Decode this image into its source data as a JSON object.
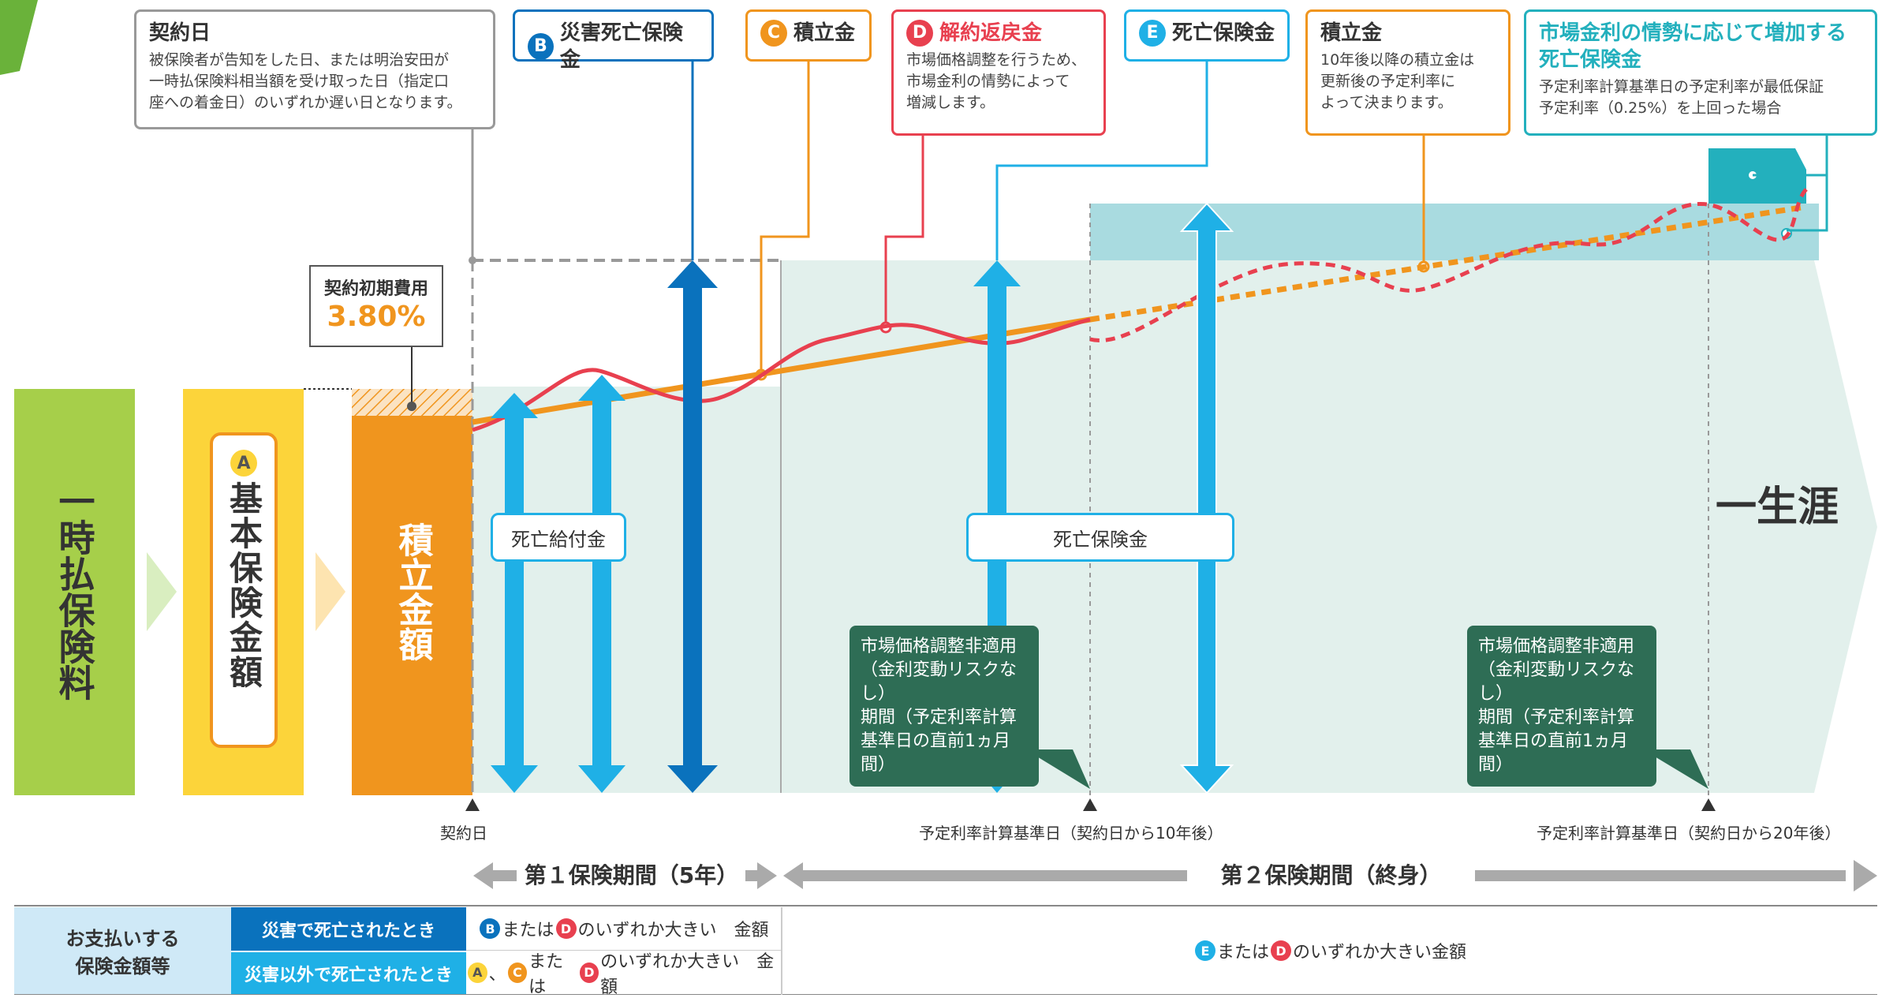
{
  "colors": {
    "green": "#a6cf4a",
    "yellow": "#fcd43a",
    "orange": "#f0951e",
    "sky": "#1fb0e6",
    "navy": "#0a72bd",
    "red": "#e8404f",
    "mint": "#e2f0ec",
    "teal": "#a9dbe0",
    "darkteal": "#23b0bd",
    "forest": "#2e6d55",
    "gray": "#888888"
  },
  "callouts": {
    "contract_day": {
      "title": "契約日",
      "lines": [
        "被保険者が告知をした日、または明治安田が",
        "一時払保険料相当額を受け取った日（指定口",
        "座への着金日）のいずれか遅い日となります。"
      ]
    },
    "b": {
      "badge": "B",
      "title": "災害死亡保険金"
    },
    "c": {
      "badge": "C",
      "title": "積立金"
    },
    "d": {
      "badge": "D",
      "title": "解約返戻金",
      "lines": [
        "市場価格調整を行うため、",
        "市場金利の情勢によって",
        "増減します。"
      ]
    },
    "e": {
      "badge": "E",
      "title": "死亡保険金"
    },
    "reserve": {
      "title": "積立金",
      "lines": [
        "10年後以降の積立金は",
        "更新後の予定利率に",
        "よって決まります。"
      ]
    },
    "market": {
      "title_lines": [
        "市場金利の情勢に応じて増加する",
        "死亡保険金"
      ],
      "lines": [
        "予定利率計算基準日の予定利率が最低保証",
        "予定利率（0.25%）を上回った場合"
      ]
    }
  },
  "initial_cost": {
    "label": "契約初期費用",
    "value": "3.80%"
  },
  "columns": {
    "premium": "一時払保険料",
    "base_badge": "A",
    "base": "基本保険金額",
    "reserve": "積立金額"
  },
  "labels": {
    "death_benefit_1": "死亡給付金",
    "death_benefit_2": "死亡保険金",
    "lifetime": "一生涯",
    "mva_box": [
      "市場価格調整非適用",
      "（金利変動リスクなし）",
      "期間（予定利率計算",
      "基準日の直前1ヵ月間）"
    ],
    "contract_day": "契約日",
    "calc_day_10": "予定利率計算基準日（契約日から10年後）",
    "calc_day_20": "予定利率計算基準日（契約日から20年後）",
    "period1": "第１保険期間（5年）",
    "period2": "第２保険期間（終身）"
  },
  "table": {
    "header": "お支払いする\n保険金額等",
    "row1_label": "災害で死亡されたとき",
    "row2_label": "災害以外で死亡されたとき",
    "row1_value": {
      "b": "B",
      "text1": "または",
      "d": "D",
      "text2": "のいずれか大きい　金額"
    },
    "row2_value": {
      "a": "A",
      "sep": "、",
      "c": "C",
      "text1": "または",
      "d": "D",
      "text2": "のいずれか大きい　金額"
    },
    "period2_value": {
      "e": "E",
      "text1": "または",
      "d": "D",
      "text2": "のいずれか大きい金額"
    }
  }
}
